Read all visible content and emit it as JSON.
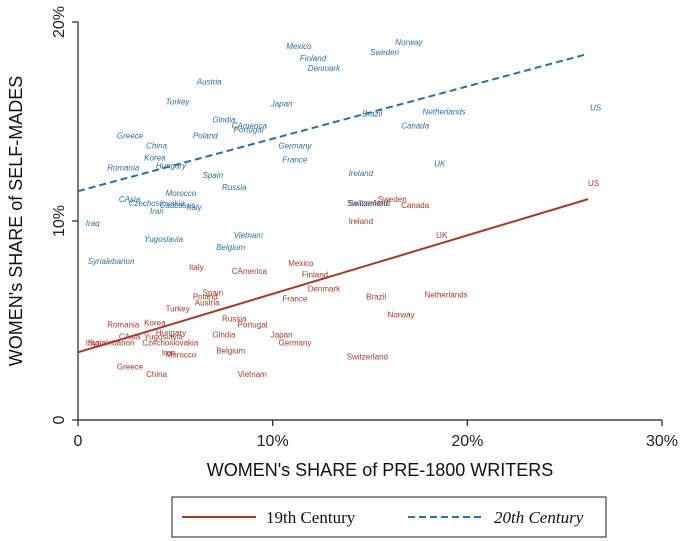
{
  "chart_data": {
    "type": "scatter",
    "title": "",
    "xlabel": "WOMEN's SHARE of PRE-1800 WRITERS",
    "ylabel": "WOMEN's SHARE of SELF-MADES",
    "xlim": [
      0,
      30
    ],
    "ylim": [
      0,
      20
    ],
    "x_ticks": [
      {
        "value": 0,
        "label": "0"
      },
      {
        "value": 10,
        "label": "10%"
      },
      {
        "value": 20,
        "label": "20%"
      },
      {
        "value": 30,
        "label": "30%"
      }
    ],
    "y_ticks": [
      {
        "value": 0,
        "label": "0"
      },
      {
        "value": 10,
        "label": "10%"
      },
      {
        "value": 20,
        "label": "20%"
      }
    ],
    "grid": false,
    "legend_position": "bottom",
    "series": [
      {
        "name": "19th Century",
        "color": "#a33a2c",
        "line_style": "solid",
        "fit": {
          "x": [
            0,
            26.2
          ],
          "y": [
            3.4,
            11.1
          ]
        },
        "points": [
          {
            "label": "US",
            "x": 26.2,
            "y": 11.9
          },
          {
            "label": "UK",
            "x": 18.4,
            "y": 9.3
          },
          {
            "label": "Sweden",
            "x": 15.4,
            "y": 11.1
          },
          {
            "label": "Canada",
            "x": 16.6,
            "y": 10.8
          },
          {
            "label": "Switzerland",
            "x": 13.9,
            "y": 10.9
          },
          {
            "label": "Ireland",
            "x": 13.9,
            "y": 10.0
          },
          {
            "label": "Netherlands",
            "x": 17.8,
            "y": 6.3
          },
          {
            "label": "Brazil",
            "x": 14.8,
            "y": 6.2
          },
          {
            "label": "Norway",
            "x": 15.9,
            "y": 5.3
          },
          {
            "label": "Switzerland",
            "x": 13.8,
            "y": 3.2
          },
          {
            "label": "Mexico",
            "x": 10.8,
            "y": 7.9
          },
          {
            "label": "Finland",
            "x": 11.5,
            "y": 7.3
          },
          {
            "label": "Denmark",
            "x": 11.8,
            "y": 6.6
          },
          {
            "label": "France",
            "x": 10.5,
            "y": 6.1
          },
          {
            "label": "Germany",
            "x": 10.3,
            "y": 3.9
          },
          {
            "label": "Japan",
            "x": 9.9,
            "y": 4.3
          },
          {
            "label": "CAmerica",
            "x": 7.9,
            "y": 7.5
          },
          {
            "label": "Italy",
            "x": 5.7,
            "y": 7.7
          },
          {
            "label": "Spain",
            "x": 6.4,
            "y": 6.4
          },
          {
            "label": "Poland",
            "x": 5.9,
            "y": 6.2
          },
          {
            "label": "Austria",
            "x": 6.0,
            "y": 5.9
          },
          {
            "label": "Turkey",
            "x": 4.5,
            "y": 5.6
          },
          {
            "label": "Russia",
            "x": 7.4,
            "y": 5.1
          },
          {
            "label": "Portugal",
            "x": 8.2,
            "y": 4.8
          },
          {
            "label": "Glndia",
            "x": 6.9,
            "y": 4.3
          },
          {
            "label": "Belgium",
            "x": 7.1,
            "y": 3.5
          },
          {
            "label": "Vietnam",
            "x": 8.2,
            "y": 2.3
          },
          {
            "label": "Romania",
            "x": 1.5,
            "y": 4.8
          },
          {
            "label": "Korea",
            "x": 3.4,
            "y": 4.9
          },
          {
            "label": "Hungary",
            "x": 4.0,
            "y": 4.4
          },
          {
            "label": "CAsia",
            "x": 2.1,
            "y": 4.2
          },
          {
            "label": "Yugoslavia",
            "x": 3.4,
            "y": 4.2
          },
          {
            "label": "Czechoslovakia",
            "x": 3.3,
            "y": 3.9
          },
          {
            "label": "Iraq",
            "x": 0.4,
            "y": 3.9
          },
          {
            "label": "Syrialebanon",
            "x": 0.5,
            "y": 3.9
          },
          {
            "label": "Iran",
            "x": 4.3,
            "y": 3.4
          },
          {
            "label": "Morocco",
            "x": 4.5,
            "y": 3.3
          },
          {
            "label": "Greece",
            "x": 2.0,
            "y": 2.7
          },
          {
            "label": "China",
            "x": 3.5,
            "y": 2.3
          }
        ]
      },
      {
        "name": "20th Century",
        "color": "#2f6f9f",
        "line_style": "dashed",
        "fit": {
          "x": [
            0,
            26.2
          ],
          "y": [
            11.5,
            18.4
          ]
        },
        "points": [
          {
            "label": "Norway",
            "x": 16.3,
            "y": 19.0
          },
          {
            "label": "Sweden",
            "x": 15.0,
            "y": 18.5
          },
          {
            "label": "Mexico",
            "x": 10.7,
            "y": 18.8
          },
          {
            "label": "Finland",
            "x": 11.4,
            "y": 18.2
          },
          {
            "label": "Denmark",
            "x": 11.8,
            "y": 17.7
          },
          {
            "label": "US",
            "x": 26.3,
            "y": 15.7
          },
          {
            "label": "Netherlands",
            "x": 17.7,
            "y": 15.5
          },
          {
            "label": "Brazil",
            "x": 14.6,
            "y": 15.4
          },
          {
            "label": "Canada",
            "x": 16.6,
            "y": 14.8
          },
          {
            "label": "UK",
            "x": 18.3,
            "y": 12.9
          },
          {
            "label": "Ireland",
            "x": 13.9,
            "y": 12.4
          },
          {
            "label": "Switzerland",
            "x": 13.8,
            "y": 10.9
          },
          {
            "label": "Germany",
            "x": 10.3,
            "y": 13.8
          },
          {
            "label": "France",
            "x": 10.5,
            "y": 13.1
          },
          {
            "label": "Japan",
            "x": 9.9,
            "y": 15.9
          },
          {
            "label": "Austria",
            "x": 6.1,
            "y": 17.0
          },
          {
            "label": "Turkey",
            "x": 4.5,
            "y": 16.0
          },
          {
            "label": "Glndia",
            "x": 6.9,
            "y": 15.1
          },
          {
            "label": "CAmerica",
            "x": 7.9,
            "y": 14.8
          },
          {
            "label": "Portugal",
            "x": 8.0,
            "y": 14.6
          },
          {
            "label": "Poland",
            "x": 5.9,
            "y": 14.3
          },
          {
            "label": "Greece",
            "x": 2.0,
            "y": 14.3
          },
          {
            "label": "China",
            "x": 3.5,
            "y": 13.8
          },
          {
            "label": "Korea",
            "x": 3.4,
            "y": 13.2
          },
          {
            "label": "Hungary",
            "x": 4.0,
            "y": 12.8
          },
          {
            "label": "Romania",
            "x": 1.5,
            "y": 12.7
          },
          {
            "label": "Spain",
            "x": 6.4,
            "y": 12.3
          },
          {
            "label": "Russia",
            "x": 7.4,
            "y": 11.7
          },
          {
            "label": "Morocco",
            "x": 4.5,
            "y": 11.4
          },
          {
            "label": "CAsia",
            "x": 2.1,
            "y": 11.1
          },
          {
            "label": "Czechoslovakia",
            "x": 2.6,
            "y": 10.9
          },
          {
            "label": "Caucasus",
            "x": 4.2,
            "y": 10.8
          },
          {
            "label": "Italy",
            "x": 5.6,
            "y": 10.7
          },
          {
            "label": "Iran",
            "x": 3.7,
            "y": 10.5
          },
          {
            "label": "Iraq",
            "x": 0.4,
            "y": 9.9
          },
          {
            "label": "Vietnam",
            "x": 8.0,
            "y": 9.3
          },
          {
            "label": "Yugoslavia",
            "x": 3.4,
            "y": 9.1
          },
          {
            "label": "Belgium",
            "x": 7.1,
            "y": 8.7
          },
          {
            "label": "Syrialebanon",
            "x": 0.5,
            "y": 8.0
          }
        ]
      }
    ]
  }
}
